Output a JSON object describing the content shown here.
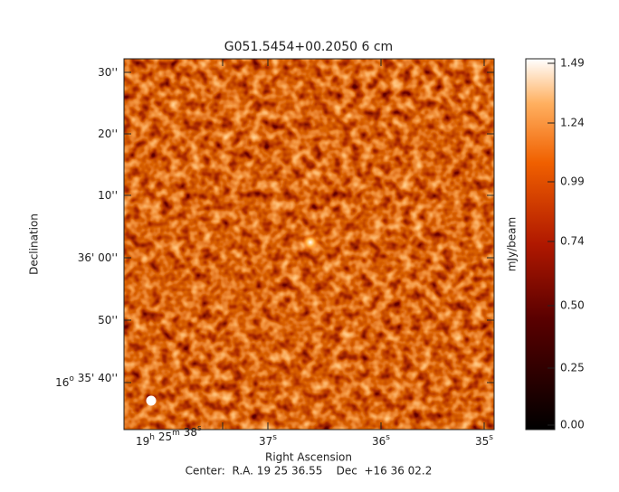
{
  "title": "G051.5454+00.2050  6 cm",
  "y_axis": {
    "label": "Declination",
    "ticks": [
      {
        "parts": [
          "30''"
        ],
        "sup": []
      },
      {
        "parts": [
          "20''"
        ],
        "sup": []
      },
      {
        "parts": [
          "10''"
        ],
        "sup": []
      },
      {
        "parts": [
          "36' 00''"
        ],
        "sup": []
      },
      {
        "parts": [
          "50''"
        ],
        "sup": []
      },
      {
        "parts": [
          "16",
          " 35' 40''"
        ],
        "sup": [
          "o"
        ]
      }
    ]
  },
  "x_axis": {
    "label": "Right Ascension",
    "ticks": [
      {
        "parts": [
          "19",
          " 25",
          " 38"
        ],
        "sup": [
          "h",
          "m",
          "s"
        ]
      },
      {
        "parts": [
          "37"
        ],
        "sup": [
          "s"
        ]
      },
      {
        "parts": [
          "36"
        ],
        "sup": [
          "s"
        ]
      },
      {
        "parts": [
          "35"
        ],
        "sup": [
          "s"
        ]
      }
    ]
  },
  "colorbar": {
    "label": "mJy/beam",
    "ticks": [
      "1.49",
      "1.24",
      "0.99",
      "0.74",
      "0.50",
      "0.25",
      "0.00"
    ]
  },
  "center": "Center:  R.A. 19 25 36.55    Dec  +16 36 02.2"
}
